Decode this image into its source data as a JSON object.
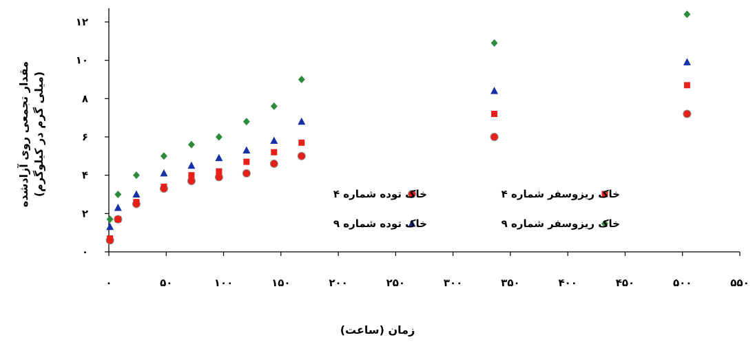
{
  "chart_data": {
    "type": "scatter",
    "xlabel": "زمان (ساعت)",
    "ylabel": "مقدار تجمعی روی آزادشده",
    "ylabel_unit": "(میلی گرم در کیلوگرم)",
    "xlim": [
      0,
      550
    ],
    "ylim": [
      0,
      12.5
    ],
    "x_ticks": [
      0,
      50,
      100,
      150,
      200,
      250,
      300,
      350,
      400,
      450,
      500,
      550
    ],
    "x_tick_labels": [
      "۰",
      "۵۰",
      "۱۰۰",
      "۱۵۰",
      "۲۰۰",
      "۲۵۰",
      "۳۰۰",
      "۳۵۰",
      "۴۰۰",
      "۴۵۰",
      "۵۰۰",
      "۵۵۰"
    ],
    "y_ticks": [
      0,
      2,
      4,
      6,
      8,
      10,
      12
    ],
    "y_tick_labels": [
      "۰",
      "۲",
      "۴",
      "۶",
      "۸",
      "۱۰",
      "۱۲"
    ],
    "grid": false,
    "legend_position": "right",
    "series": [
      {
        "name": "خاک توده شماره ۴",
        "marker": "circle",
        "color": "#e8201a",
        "x": [
          1,
          8,
          24,
          48,
          72,
          96,
          120,
          144,
          168,
          336,
          504
        ],
        "y": [
          0.6,
          1.7,
          2.5,
          3.3,
          3.7,
          3.9,
          4.1,
          4.6,
          5.0,
          6.0,
          7.2
        ]
      },
      {
        "name": "خاک ریزوسفر شماره ۴",
        "marker": "square",
        "color": "#e8201a",
        "x": [
          1,
          8,
          24,
          48,
          72,
          96,
          120,
          144,
          168,
          336,
          504
        ],
        "y": [
          0.7,
          1.7,
          2.6,
          3.4,
          4.0,
          4.2,
          4.7,
          5.2,
          5.7,
          7.2,
          8.7
        ]
      },
      {
        "name": "خاک توده شماره ۹",
        "marker": "triangle",
        "color": "#1631a8",
        "x": [
          1,
          8,
          24,
          48,
          72,
          96,
          120,
          144,
          168,
          336,
          504
        ],
        "y": [
          1.3,
          2.3,
          3.0,
          4.1,
          4.5,
          4.9,
          5.3,
          5.8,
          6.8,
          8.4,
          9.9
        ]
      },
      {
        "name": "خاک ریزوسفر شماره ۹",
        "marker": "diamond",
        "color": "#2e8b3c",
        "x": [
          1,
          8,
          24,
          48,
          72,
          96,
          120,
          144,
          168,
          336,
          504
        ],
        "y": [
          1.7,
          3.0,
          4.0,
          5.0,
          5.6,
          6.0,
          6.8,
          7.6,
          9.0,
          10.9,
          12.4
        ]
      }
    ],
    "legend_layout": [
      {
        "series_index": 0,
        "row": 0,
        "col": 0
      },
      {
        "series_index": 1,
        "row": 0,
        "col": 1
      },
      {
        "series_index": 2,
        "row": 1,
        "col": 0
      },
      {
        "series_index": 3,
        "row": 1,
        "col": 1
      }
    ]
  }
}
